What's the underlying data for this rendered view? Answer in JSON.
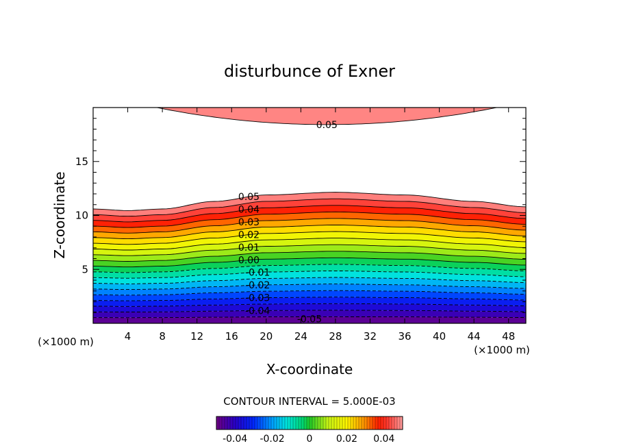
{
  "chart_data": {
    "type": "contour",
    "title": "disturbunce of Exner",
    "xlabel": "X-coordinate",
    "ylabel": "Z-coordinate",
    "x_unit_left": "(×1000 m)",
    "x_unit_right": "(×1000 m)",
    "xlim": [
      0,
      50
    ],
    "ylim": [
      0,
      20
    ],
    "xticks": [
      4,
      8,
      12,
      16,
      20,
      24,
      28,
      32,
      36,
      40,
      44,
      48
    ],
    "yticks": [
      5,
      10,
      15
    ],
    "contour_interval_text": "CONTOUR INTERVAL = 5.000E-03",
    "contour_interval": 0.005,
    "field_range": [
      -0.05,
      0.05
    ],
    "field_model": {
      "lower_layer": "value rises from -0.05 at z=0 to 0.05 at z≈10.5 (x=4) / 12.1 (x=28) / 10.8 (x=50)",
      "upper_region": "0.05 contour near top, lowest at z≈18.4 near x=27"
    },
    "contour_labels": [
      {
        "text": "0.05"
      },
      {
        "text": "0.05"
      },
      {
        "text": "0.04"
      },
      {
        "text": "0.03"
      },
      {
        "text": "0.02"
      },
      {
        "text": "0.01"
      },
      {
        "text": "0.00"
      },
      {
        "text": "-0.01"
      },
      {
        "text": "-0.02"
      },
      {
        "text": "-0.03"
      },
      {
        "text": "-0.04"
      },
      {
        "text": "-0.05"
      }
    ],
    "colorbar": {
      "ticks": [
        "-0.04",
        "-0.02",
        "0",
        "0.02",
        "0.04"
      ],
      "range": [
        -0.05,
        0.05
      ]
    }
  }
}
